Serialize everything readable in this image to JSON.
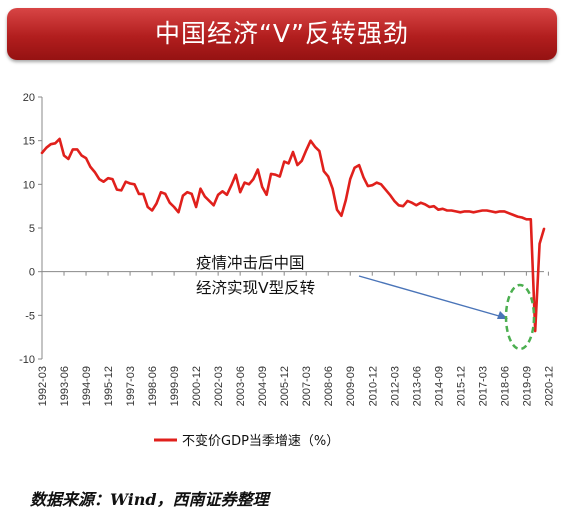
{
  "banner": {
    "title": "中国经济“V”反转强劲"
  },
  "source_note": "数据来源：Wind，西南证券整理",
  "colors": {
    "banner": "#b21e1e",
    "series": "#e0201c",
    "arrow": "#4a74b8",
    "ellipse": "#4caf50"
  },
  "chart_data": {
    "type": "line",
    "title": "",
    "xlabel": "",
    "ylabel": "",
    "ylim": [
      -10,
      20
    ],
    "yticks": [
      -10,
      -5,
      0,
      5,
      10,
      15,
      20
    ],
    "grid": false,
    "legend_position": "bottom",
    "x_tick_labels": [
      "1992-03",
      "1993-06",
      "1994-09",
      "1995-12",
      "1997-03",
      "1998-06",
      "1999-09",
      "2000-12",
      "2002-03",
      "2003-06",
      "2004-09",
      "2005-12",
      "2007-03",
      "2008-06",
      "2009-09",
      "2010-12",
      "2012-03",
      "2013-06",
      "2014-09",
      "2015-12",
      "2017-03",
      "2018-06",
      "2019-09",
      "2020-12"
    ],
    "series": [
      {
        "name": "不变价GDP当季增速（%）",
        "points": [
          [
            "1992-03",
            13.6
          ],
          [
            "1992-06",
            14.2
          ],
          [
            "1992-09",
            14.6
          ],
          [
            "1992-12",
            14.7
          ],
          [
            "1993-03",
            15.2
          ],
          [
            "1993-06",
            13.3
          ],
          [
            "1993-09",
            12.9
          ],
          [
            "1993-12",
            14.0
          ],
          [
            "1994-03",
            14.0
          ],
          [
            "1994-06",
            13.3
          ],
          [
            "1994-09",
            13.0
          ],
          [
            "1994-12",
            12.0
          ],
          [
            "1995-03",
            11.4
          ],
          [
            "1995-06",
            10.6
          ],
          [
            "1995-09",
            10.3
          ],
          [
            "1995-12",
            10.7
          ],
          [
            "1996-03",
            10.6
          ],
          [
            "1996-06",
            9.4
          ],
          [
            "1996-09",
            9.3
          ],
          [
            "1996-12",
            10.3
          ],
          [
            "1997-03",
            10.1
          ],
          [
            "1997-06",
            10.0
          ],
          [
            "1997-09",
            8.9
          ],
          [
            "1997-12",
            8.9
          ],
          [
            "1998-03",
            7.4
          ],
          [
            "1998-06",
            7.0
          ],
          [
            "1998-09",
            7.8
          ],
          [
            "1998-12",
            9.1
          ],
          [
            "1999-03",
            8.9
          ],
          [
            "1999-06",
            7.9
          ],
          [
            "1999-09",
            7.4
          ],
          [
            "1999-12",
            6.8
          ],
          [
            "2000-03",
            8.7
          ],
          [
            "2000-06",
            9.1
          ],
          [
            "2000-09",
            8.9
          ],
          [
            "2000-12",
            7.4
          ],
          [
            "2001-03",
            9.5
          ],
          [
            "2001-06",
            8.6
          ],
          [
            "2001-09",
            8.1
          ],
          [
            "2001-12",
            7.6
          ],
          [
            "2002-03",
            8.8
          ],
          [
            "2002-06",
            9.2
          ],
          [
            "2002-09",
            8.8
          ],
          [
            "2002-12",
            9.9
          ],
          [
            "2003-03",
            11.1
          ],
          [
            "2003-06",
            9.1
          ],
          [
            "2003-09",
            10.2
          ],
          [
            "2003-12",
            10.0
          ],
          [
            "2004-03",
            10.6
          ],
          [
            "2004-06",
            11.7
          ],
          [
            "2004-09",
            9.7
          ],
          [
            "2004-12",
            8.8
          ],
          [
            "2005-03",
            11.2
          ],
          [
            "2005-06",
            11.1
          ],
          [
            "2005-09",
            10.9
          ],
          [
            "2005-12",
            12.6
          ],
          [
            "2006-03",
            12.4
          ],
          [
            "2006-06",
            13.7
          ],
          [
            "2006-09",
            12.2
          ],
          [
            "2006-12",
            12.7
          ],
          [
            "2007-03",
            13.9
          ],
          [
            "2007-06",
            15.0
          ],
          [
            "2007-09",
            14.3
          ],
          [
            "2007-12",
            13.8
          ],
          [
            "2008-03",
            11.5
          ],
          [
            "2008-06",
            10.9
          ],
          [
            "2008-09",
            9.5
          ],
          [
            "2008-12",
            7.1
          ],
          [
            "2009-03",
            6.4
          ],
          [
            "2009-06",
            8.2
          ],
          [
            "2009-09",
            10.6
          ],
          [
            "2009-12",
            11.9
          ],
          [
            "2010-03",
            12.2
          ],
          [
            "2010-06",
            10.8
          ],
          [
            "2010-09",
            9.8
          ],
          [
            "2010-12",
            9.9
          ],
          [
            "2011-03",
            10.2
          ],
          [
            "2011-06",
            10.0
          ],
          [
            "2011-09",
            9.4
          ],
          [
            "2011-12",
            8.8
          ],
          [
            "2012-03",
            8.1
          ],
          [
            "2012-06",
            7.6
          ],
          [
            "2012-09",
            7.5
          ],
          [
            "2012-12",
            8.1
          ],
          [
            "2013-03",
            7.9
          ],
          [
            "2013-06",
            7.6
          ],
          [
            "2013-09",
            7.9
          ],
          [
            "2013-12",
            7.7
          ],
          [
            "2014-03",
            7.4
          ],
          [
            "2014-06",
            7.5
          ],
          [
            "2014-09",
            7.1
          ],
          [
            "2014-12",
            7.2
          ],
          [
            "2015-03",
            7.0
          ],
          [
            "2015-06",
            7.0
          ],
          [
            "2015-09",
            6.9
          ],
          [
            "2015-12",
            6.8
          ],
          [
            "2016-03",
            6.9
          ],
          [
            "2016-06",
            6.9
          ],
          [
            "2016-09",
            6.8
          ],
          [
            "2016-12",
            6.9
          ],
          [
            "2017-03",
            7.0
          ],
          [
            "2017-06",
            7.0
          ],
          [
            "2017-09",
            6.9
          ],
          [
            "2017-12",
            6.8
          ],
          [
            "2018-03",
            6.9
          ],
          [
            "2018-06",
            6.9
          ],
          [
            "2018-09",
            6.7
          ],
          [
            "2018-12",
            6.5
          ],
          [
            "2019-03",
            6.3
          ],
          [
            "2019-06",
            6.2
          ],
          [
            "2019-09",
            6.0
          ],
          [
            "2019-12",
            6.0
          ],
          [
            "2020-03",
            -6.8
          ],
          [
            "2020-06",
            3.2
          ],
          [
            "2020-09",
            4.9
          ]
        ]
      }
    ],
    "annotation": {
      "lines": [
        "疫情冲击后中国",
        "经济实现V型反转"
      ]
    }
  }
}
